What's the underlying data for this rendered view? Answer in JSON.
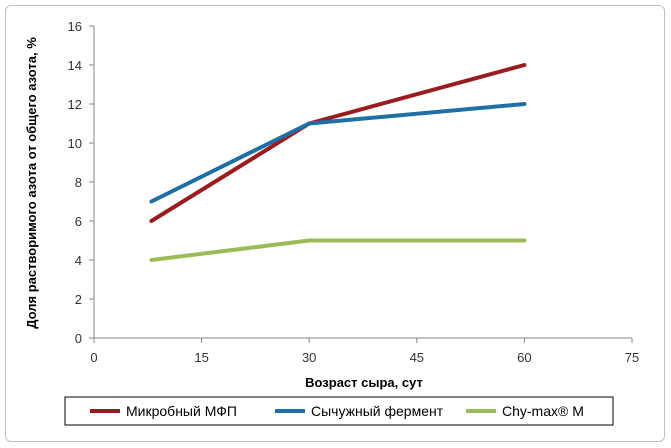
{
  "chart_data": {
    "type": "line",
    "xlabel": "Возраст сыра, сут",
    "ylabel": "Доля растворимого азота от общего азота, %",
    "x": [
      8,
      30,
      60
    ],
    "xlim": [
      0,
      75
    ],
    "ylim": [
      0,
      16
    ],
    "xticks": [
      0,
      15,
      30,
      45,
      60,
      75
    ],
    "yticks": [
      0,
      2,
      4,
      6,
      8,
      10,
      12,
      14,
      16
    ],
    "grid": false,
    "legend_position": "bottom",
    "series": [
      {
        "name": "Микробный МФП",
        "values": [
          6,
          11,
          14
        ],
        "color": "#9b1c1f"
      },
      {
        "name": "Сычужный фермент",
        "values": [
          7,
          11,
          12
        ],
        "color": "#1f6fa5"
      },
      {
        "name": "Chy-max® M",
        "values": [
          4,
          5,
          5
        ],
        "color": "#9bbb59"
      }
    ]
  }
}
